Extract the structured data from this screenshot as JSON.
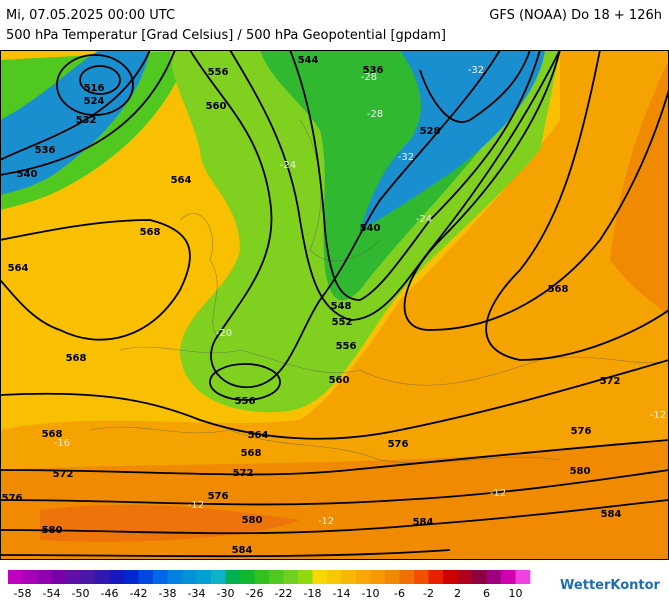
{
  "header": {
    "date": "Mi, 07.05.2025 00:00 UTC",
    "model": "GFS (NOAA) Do 18 + 126h",
    "description": "500 hPa Temperatur [Grad Celsius] / 500 hPa Geopotential [gpdam]"
  },
  "map": {
    "contour_labels": [
      516,
      524,
      532,
      536,
      540,
      556,
      544,
      536,
      560,
      528,
      564,
      568,
      564,
      540,
      548,
      552,
      556,
      568,
      556,
      560,
      564,
      568,
      568,
      576,
      576,
      572,
      568,
      572,
      572,
      580,
      576,
      576,
      580,
      580,
      584,
      584,
      584
    ],
    "temperature_labels": [
      -28,
      -32,
      -28,
      -32,
      -24,
      -24,
      -20,
      -16,
      -12,
      -12,
      -12,
      -12
    ]
  },
  "legend": {
    "ticks": [
      -58,
      -54,
      -50,
      -46,
      -42,
      -38,
      -34,
      -30,
      -26,
      -22,
      -18,
      -14,
      -10,
      -6,
      -2,
      2,
      6,
      10
    ],
    "colors": [
      "#c000c0",
      "#a800b8",
      "#9000b0",
      "#7800a8",
      "#6010a8",
      "#4818a8",
      "#3018b0",
      "#1818c0",
      "#0028d0",
      "#0048e0",
      "#0068e8",
      "#0080e0",
      "#0090d8",
      "#00a0d0",
      "#10b0c8",
      "#00b050",
      "#10b830",
      "#30c020",
      "#50c820",
      "#70d020",
      "#90d810",
      "#f8d800",
      "#f8c800",
      "#f8b800",
      "#f8a800",
      "#f89800",
      "#f08800",
      "#f07000",
      "#f05000",
      "#e82000",
      "#d00000",
      "#b00020",
      "#900040",
      "#a00080",
      "#d000b0",
      "#f040e0"
    ]
  },
  "brand": "WetterKontor"
}
